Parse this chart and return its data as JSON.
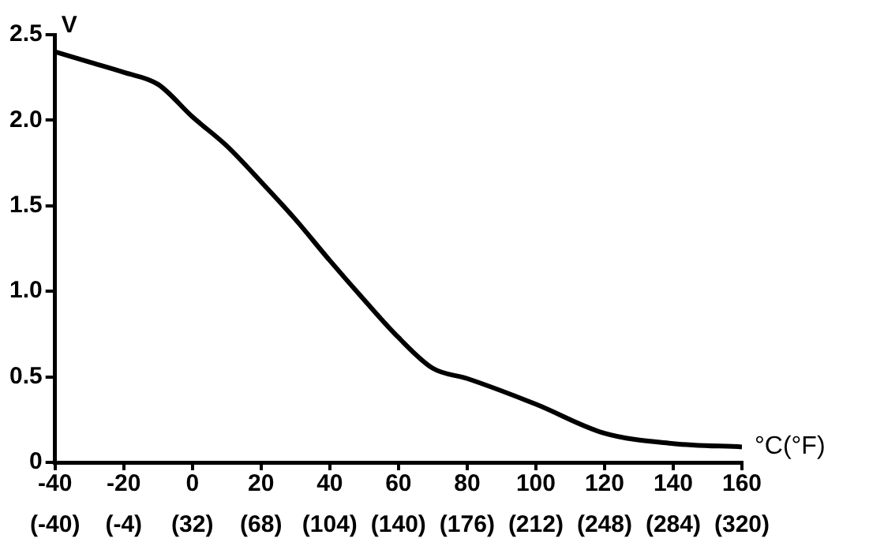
{
  "chart_data": {
    "type": "line",
    "xlabel": "°C(°F)",
    "ylabel": "V",
    "x": [
      -40,
      -30,
      -20,
      -10,
      0,
      10,
      20,
      30,
      40,
      50,
      60,
      70,
      80,
      100,
      120,
      140,
      160
    ],
    "series": [
      {
        "color": "#000000",
        "values": [
          2.4,
          2.34,
          2.28,
          2.21,
          2.02,
          1.85,
          1.64,
          1.42,
          1.18,
          0.95,
          0.73,
          0.55,
          0.49,
          0.34,
          0.17,
          0.11,
          0.09
        ]
      }
    ],
    "xlim": [
      -40,
      160
    ],
    "xticks": [
      -40,
      -20,
      0,
      20,
      40,
      60,
      80,
      100,
      120,
      140,
      160
    ],
    "x2lim": [
      -40,
      320
    ],
    "x2ticks": [
      {
        "value": -40,
        "label": "(-40)"
      },
      {
        "value": -4,
        "label": "(-4)"
      },
      {
        "value": 32,
        "label": "(32)"
      },
      {
        "value": 68,
        "label": "(68)"
      },
      {
        "value": 104,
        "label": "(104)"
      },
      {
        "value": 140,
        "label": "(140)"
      },
      {
        "value": 176,
        "label": "(176)"
      },
      {
        "value": 212,
        "label": "(212)"
      },
      {
        "value": 248,
        "label": "(248)"
      },
      {
        "value": 284,
        "label": "(284)"
      },
      {
        "value": 320,
        "label": "(320)"
      }
    ],
    "ylim": [
      0,
      2.5
    ],
    "yticks": [
      0,
      0.5,
      {
        "value": 1,
        "label": "1.0"
      },
      1.5,
      {
        "value": 2,
        "label": "2.0"
      },
      2.5
    ],
    "grid": false,
    "legend": false,
    "marker": "none",
    "line_style": "solid"
  }
}
